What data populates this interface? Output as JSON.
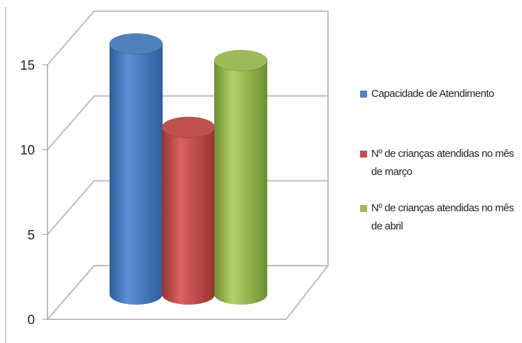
{
  "chart_data": {
    "type": "bar",
    "style": "3d-cylinder",
    "categories": [
      "Capacidade de Atendimento",
      "Nº de crianças atendidas no mês de março",
      "Nº de crianças atendidas no mês de abril"
    ],
    "values": [
      15,
      10,
      14
    ],
    "colors": [
      "#4f81bd",
      "#c0504d",
      "#9bbb59"
    ],
    "ylim": [
      0,
      15
    ],
    "yticks": [
      "0",
      "5",
      "10",
      "15"
    ],
    "grid": true,
    "legend_position": "right"
  },
  "legend": {
    "items": [
      {
        "label": "Capacidade de Atendimento",
        "color": "#4f81bd"
      },
      {
        "label": "Nº de crianças atendidas no mês de março",
        "color": "#c0504d"
      },
      {
        "label": "Nº de crianças atendidas no mês de abril",
        "color": "#9bbb59"
      }
    ]
  }
}
